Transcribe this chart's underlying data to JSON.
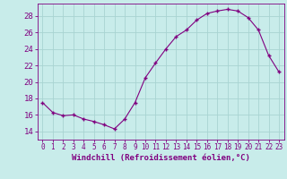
{
  "x": [
    0,
    1,
    2,
    3,
    4,
    5,
    6,
    7,
    8,
    9,
    10,
    11,
    12,
    13,
    14,
    15,
    16,
    17,
    18,
    19,
    20,
    21,
    22,
    23
  ],
  "y": [
    17.5,
    16.3,
    15.9,
    16.0,
    15.5,
    15.2,
    14.8,
    14.3,
    15.5,
    17.5,
    20.5,
    22.3,
    24.0,
    25.5,
    26.3,
    27.5,
    28.3,
    28.6,
    28.8,
    28.6,
    27.8,
    26.3,
    23.2,
    21.2
  ],
  "line_color": "#800080",
  "marker": "+",
  "background_color": "#c8ecea",
  "grid_color": "#a8d4d2",
  "xlabel": "Windchill (Refroidissement éolien,°C)",
  "ylabel_ticks": [
    14,
    16,
    18,
    20,
    22,
    24,
    26,
    28
  ],
  "ylim": [
    13.0,
    29.5
  ],
  "xlim": [
    -0.5,
    23.5
  ],
  "tick_color": "#800080",
  "label_color": "#800080",
  "xtick_fontsize": 5.5,
  "ytick_fontsize": 6.5,
  "xlabel_fontsize": 6.5
}
